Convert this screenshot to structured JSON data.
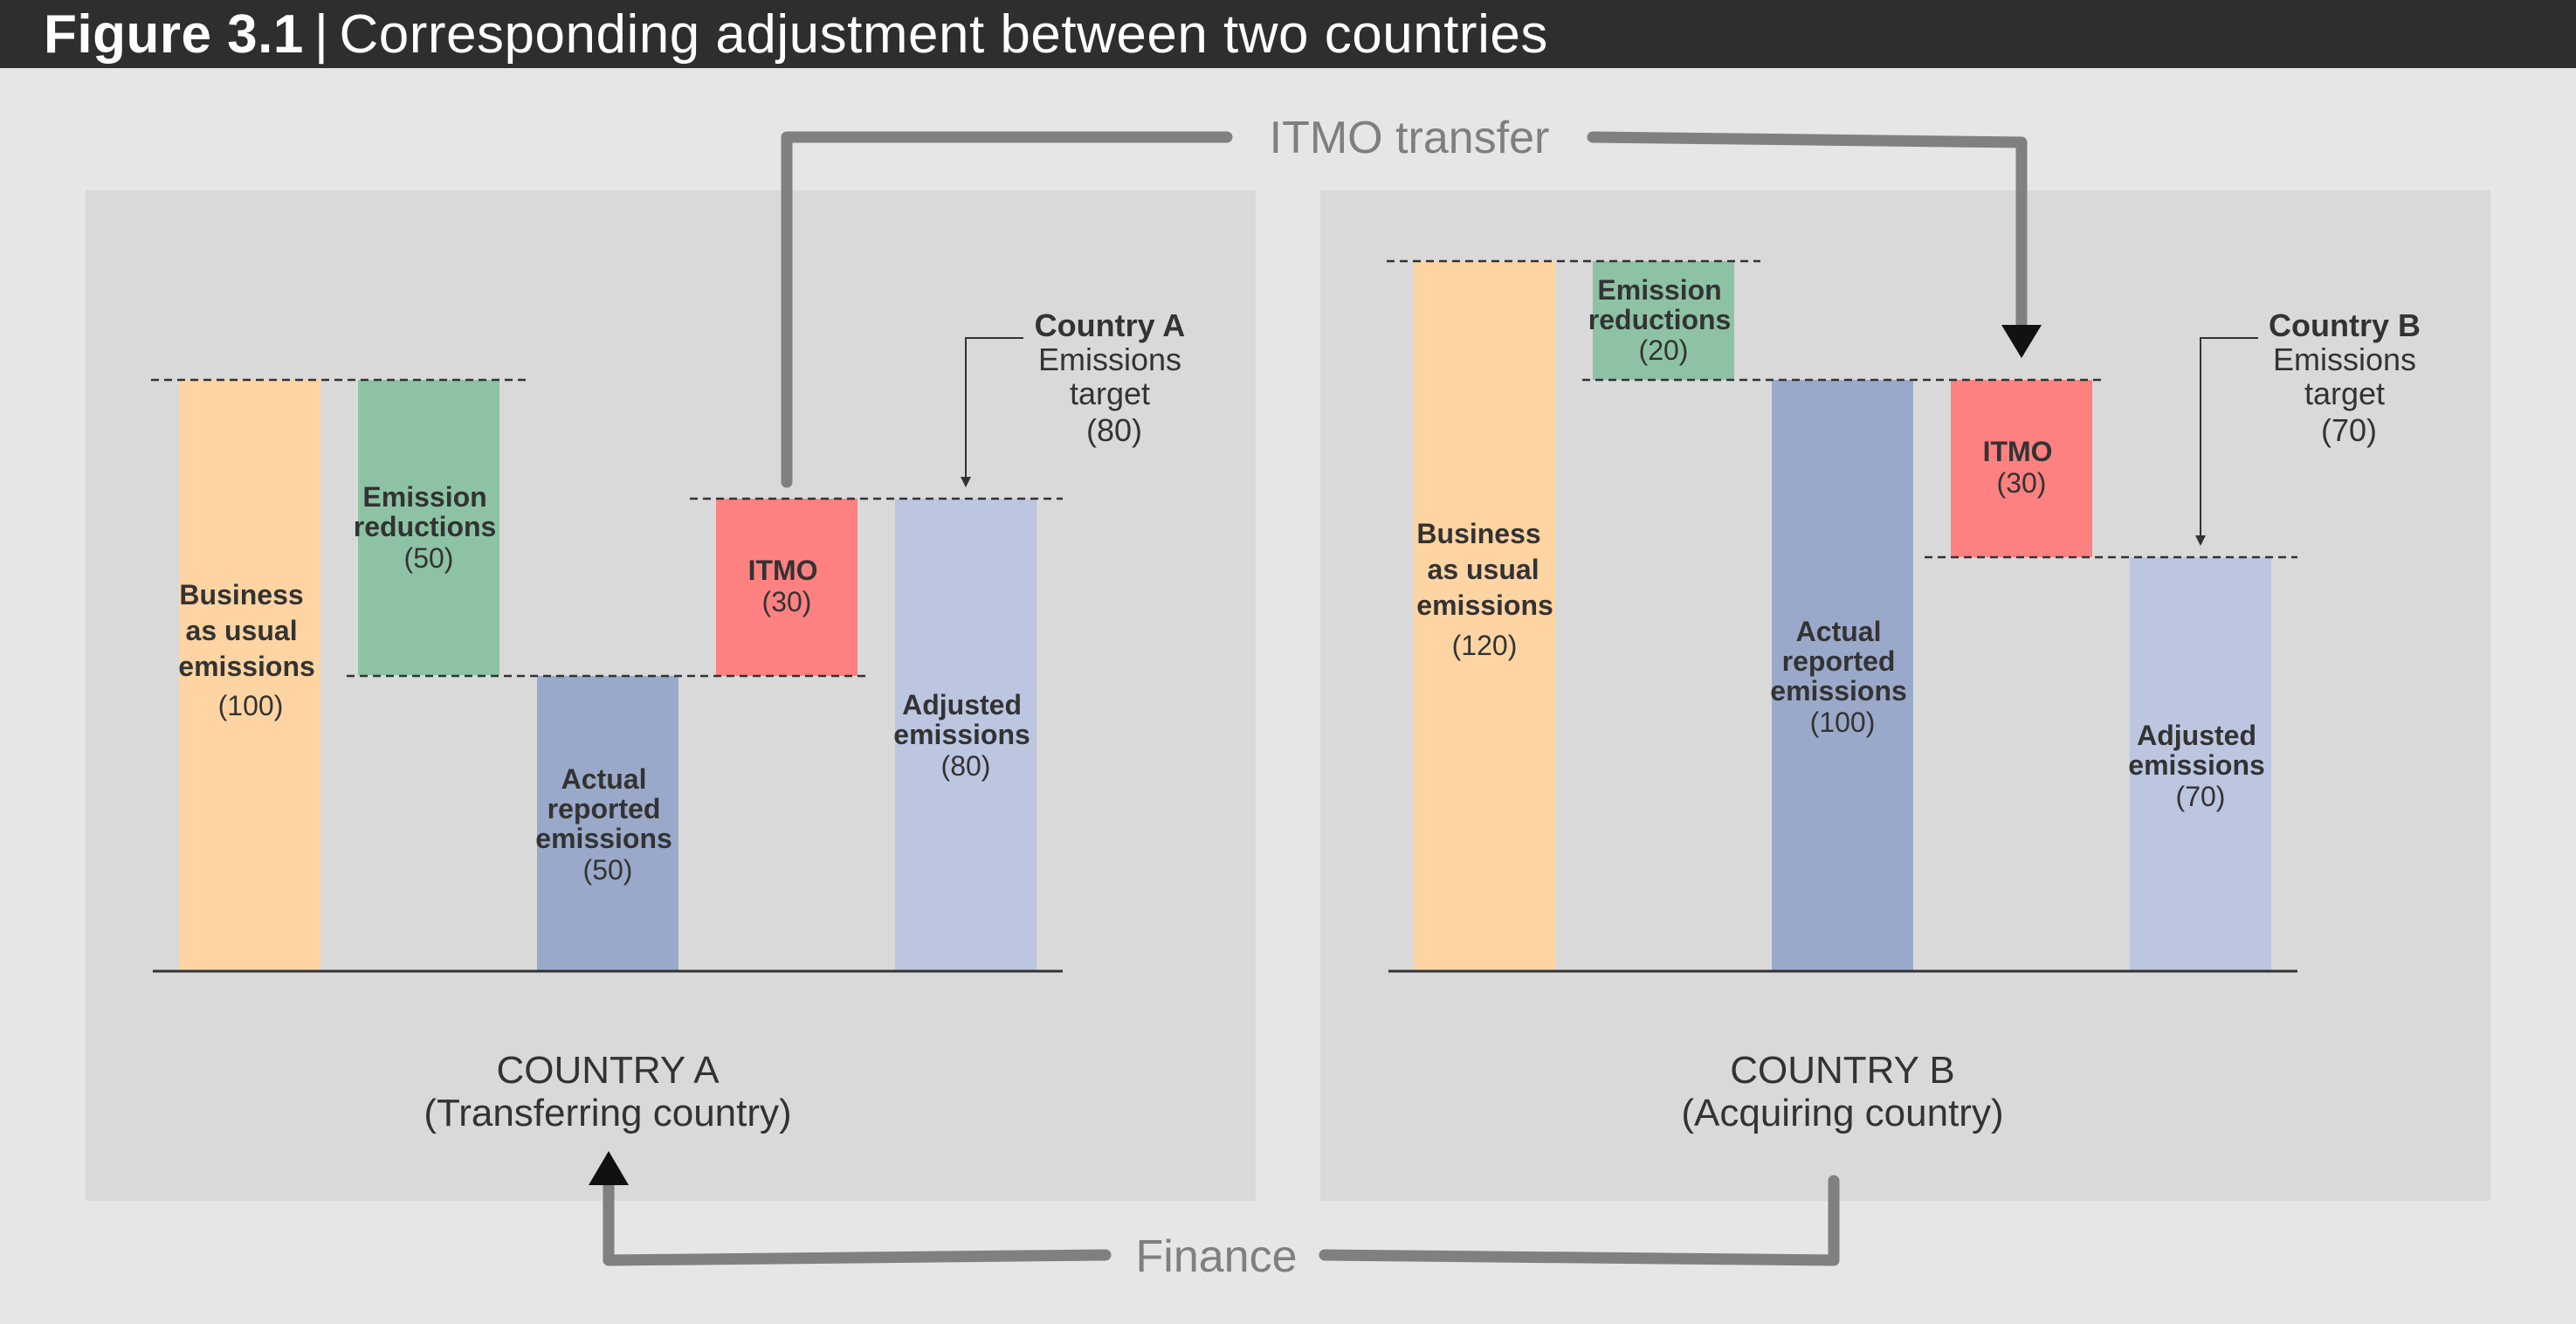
{
  "header": {
    "figure_label": "Figure 3.1",
    "separator": "|",
    "title": "Corresponding adjustment between two countries"
  },
  "flows": {
    "itmo_transfer_label": "ITMO transfer",
    "finance_label": "Finance"
  },
  "colors": {
    "header_bg": "#2e2e2e",
    "page_bg": "#e6e6e6",
    "panel_bg": "#d9d9d9",
    "business_as_usual": "#fed4a2",
    "emission_reductions": "#8dc3a4",
    "actual_reported": "#9aa9c9",
    "itmo": "#fe8181",
    "adjusted": "#bdc6e0",
    "arrow": "#808080"
  },
  "country_a": {
    "name": "COUNTRY A",
    "role": "(Transferring country)",
    "target_title": "Country A",
    "target_line1": "Emissions",
    "target_line2": "target",
    "target_value": "(80)",
    "bars": {
      "bau": {
        "lines": [
          "Business",
          "as usual",
          "emissions"
        ],
        "value_text": "(100)",
        "value": 100
      },
      "reductions": {
        "lines": [
          "Emission",
          "reductions"
        ],
        "value_text": "(50)",
        "value": 50
      },
      "actual": {
        "lines": [
          "Actual",
          "reported",
          "emissions"
        ],
        "value_text": "(50)",
        "value": 50
      },
      "itmo": {
        "lines": [
          "ITMO"
        ],
        "value_text": "(30)",
        "value": 30
      },
      "adjusted": {
        "lines": [
          "Adjusted",
          "emissions"
        ],
        "value_text": "(80)",
        "value": 80
      }
    }
  },
  "country_b": {
    "name": "COUNTRY B",
    "role": "(Acquiring country)",
    "target_title": "Country B",
    "target_line1": "Emissions",
    "target_line2": "target",
    "target_value": "(70)",
    "bars": {
      "bau": {
        "lines": [
          "Business",
          "as usual",
          "emissions"
        ],
        "value_text": "(120)",
        "value": 120
      },
      "reductions": {
        "lines": [
          "Emission",
          "reductions"
        ],
        "value_text": "(20)",
        "value": 20
      },
      "actual": {
        "lines": [
          "Actual",
          "reported",
          "emissions"
        ],
        "value_text": "(100)",
        "value": 100
      },
      "itmo": {
        "lines": [
          "ITMO"
        ],
        "value_text": "(30)",
        "value": 30
      },
      "adjusted": {
        "lines": [
          "Adjusted",
          "emissions"
        ],
        "value_text": "(70)",
        "value": 70
      }
    }
  }
}
